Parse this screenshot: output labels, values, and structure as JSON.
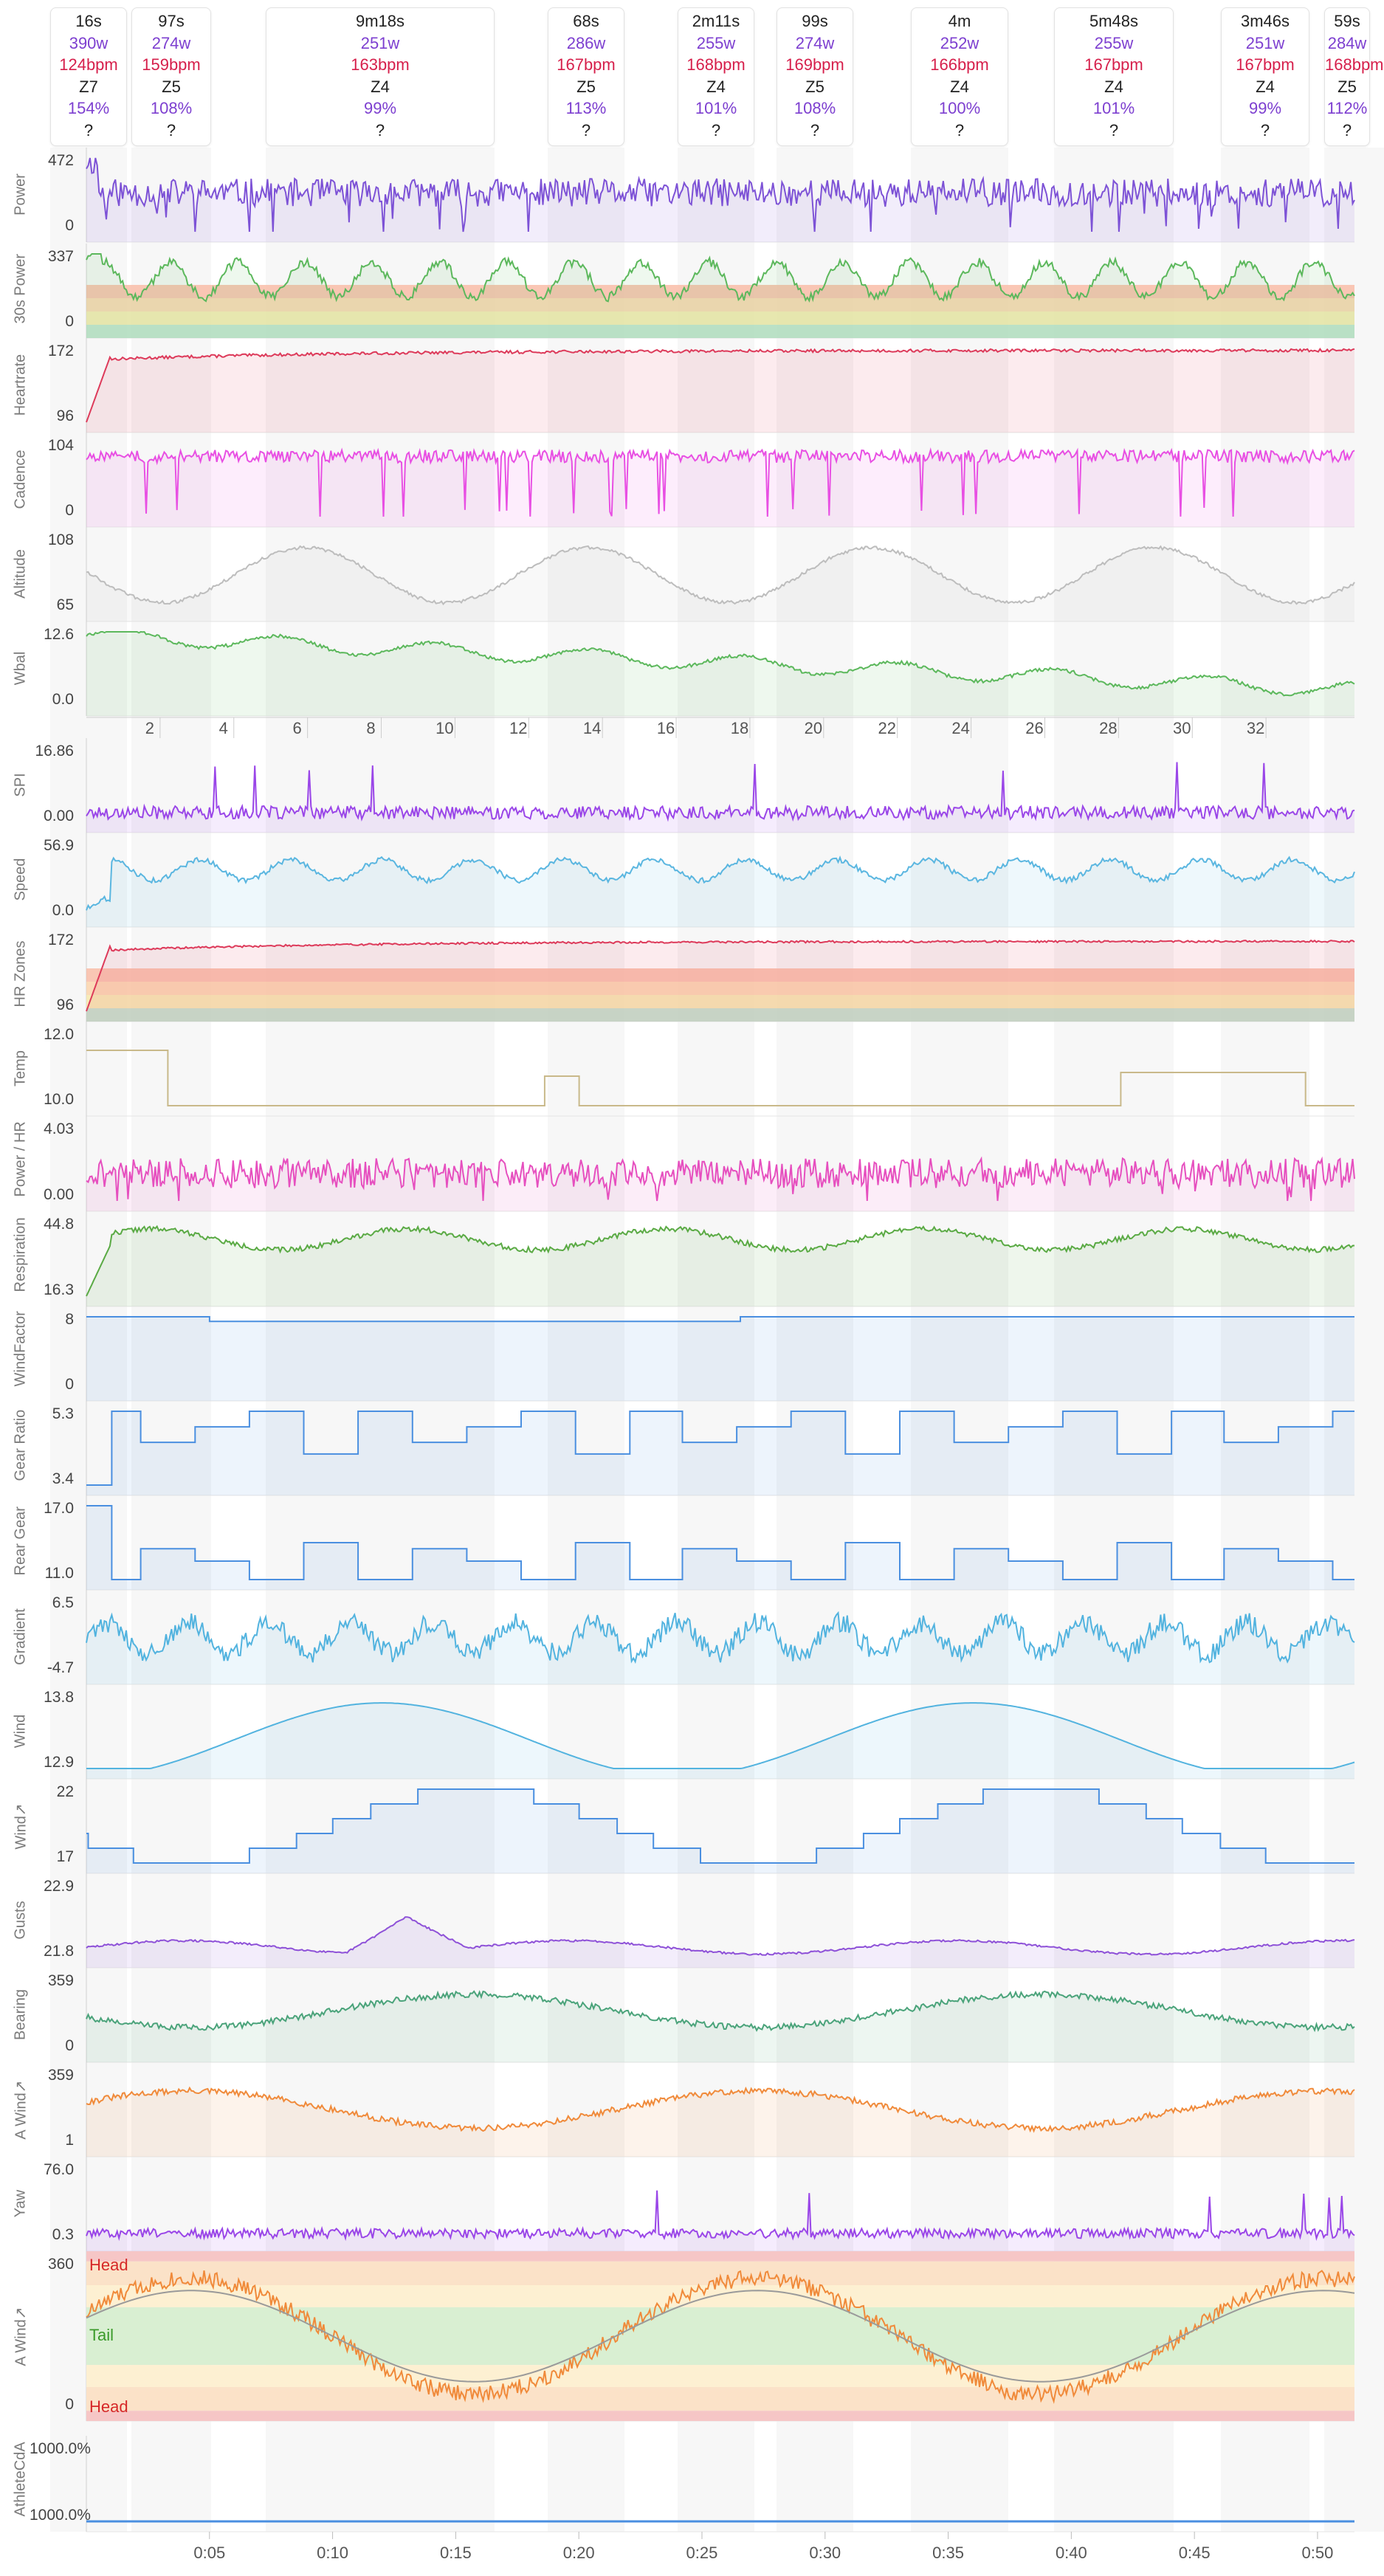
{
  "colors": {
    "power": "#7d52d6",
    "heartrate": "#dd3a5a",
    "cadence": "#e84fe3",
    "altitude": "#bdbdbd",
    "wbal": "#5cb85c",
    "spi": "#9a46e8",
    "speed": "#5ab6e0",
    "temp": "#c9b98a",
    "powerhr": "#e64fbf",
    "respiration": "#5aaa44",
    "blue": "#4a8fe0",
    "gradient": "#52b3df",
    "gusts": "#8e51d8",
    "bearing": "#4aa37a",
    "awind": "#f08a3a",
    "yaw": "#9a46e8",
    "head": "#d62828",
    "tail": "#3a9a2a"
  },
  "intervals": [
    {
      "duration": "16s",
      "power": "390w",
      "heartrate": "124bpm",
      "zone": "Z7",
      "percent": "154%",
      "note": "?"
    },
    {
      "duration": "97s",
      "power": "274w",
      "heartrate": "159bpm",
      "zone": "Z5",
      "percent": "108%",
      "note": "?"
    },
    {
      "duration": "9m18s",
      "power": "251w",
      "heartrate": "163bpm",
      "zone": "Z4",
      "percent": "99%",
      "note": "?"
    },
    {
      "duration": "68s",
      "power": "286w",
      "heartrate": "167bpm",
      "zone": "Z5",
      "percent": "113%",
      "note": "?"
    },
    {
      "duration": "2m11s",
      "power": "255w",
      "heartrate": "168bpm",
      "zone": "Z4",
      "percent": "101%",
      "note": "?"
    },
    {
      "duration": "99s",
      "power": "274w",
      "heartrate": "169bpm",
      "zone": "Z5",
      "percent": "108%",
      "note": "?"
    },
    {
      "duration": "4m",
      "power": "252w",
      "heartrate": "166bpm",
      "zone": "Z4",
      "percent": "100%",
      "note": "?"
    },
    {
      "duration": "5m48s",
      "power": "255w",
      "heartrate": "167bpm",
      "zone": "Z4",
      "percent": "101%",
      "note": "?"
    },
    {
      "duration": "3m46s",
      "power": "251w",
      "heartrate": "167bpm",
      "zone": "Z4",
      "percent": "99%",
      "note": "?"
    },
    {
      "duration": "59s",
      "power": "284w",
      "heartrate": "168bpm",
      "zone": "Z5",
      "percent": "112%",
      "note": "?"
    }
  ],
  "chart_data": {
    "type": "line",
    "x_unit": "minutes",
    "x_range": [
      0,
      51.5
    ],
    "x_ticks": [
      "0:05",
      "0:10",
      "0:15",
      "0:20",
      "0:25",
      "0:30",
      "0:35",
      "0:40",
      "0:45",
      "0:50"
    ],
    "distance_ticks": [
      "2",
      "4",
      "6",
      "8",
      "10",
      "12",
      "14",
      "16",
      "18",
      "20",
      "22",
      "24",
      "26",
      "28",
      "30",
      "32"
    ],
    "panels": [
      {
        "label": "Power",
        "y_ticks": [
          "472",
          "0"
        ],
        "ylim": [
          0,
          472
        ]
      },
      {
        "label": "30s Power",
        "y_ticks": [
          "337",
          "0"
        ],
        "ylim": [
          0,
          337
        ]
      },
      {
        "label": "Heartrate",
        "y_ticks": [
          "172",
          "96"
        ],
        "ylim": [
          96,
          172
        ]
      },
      {
        "label": "Cadence",
        "y_ticks": [
          "104",
          "0"
        ],
        "ylim": [
          0,
          104
        ]
      },
      {
        "label": "Altitude",
        "y_ticks": [
          "108",
          "65"
        ],
        "ylim": [
          65,
          108
        ]
      },
      {
        "label": "Wbal",
        "y_ticks": [
          "12.6",
          "0.0"
        ],
        "ylim": [
          0,
          12.6
        ]
      },
      {
        "label": "SPI",
        "y_ticks": [
          "16.86",
          "0.00"
        ],
        "ylim": [
          0,
          16.86
        ]
      },
      {
        "label": "Speed",
        "y_ticks": [
          "56.9",
          "0.0"
        ],
        "ylim": [
          0,
          56.9
        ]
      },
      {
        "label": "HR Zones",
        "y_ticks": [
          "172",
          "96"
        ],
        "ylim": [
          96,
          172
        ]
      },
      {
        "label": "Temp",
        "y_ticks": [
          "12.0",
          "10.0"
        ],
        "ylim": [
          10,
          12
        ]
      },
      {
        "label": "Power / HR",
        "y_ticks": [
          "4.03",
          "0.00"
        ],
        "ylim": [
          0,
          4.03
        ]
      },
      {
        "label": "Respiration",
        "y_ticks": [
          "44.8",
          "16.3"
        ],
        "ylim": [
          16.3,
          44.8
        ]
      },
      {
        "label": "WindFactor",
        "y_ticks": [
          "8",
          "0"
        ],
        "ylim": [
          0,
          8
        ]
      },
      {
        "label": "Gear Ratio",
        "y_ticks": [
          "5.3",
          "3.4"
        ],
        "ylim": [
          3.4,
          5.3
        ]
      },
      {
        "label": "Rear Gear",
        "y_ticks": [
          "17.0",
          "11.0"
        ],
        "ylim": [
          11,
          17
        ]
      },
      {
        "label": "Gradient",
        "y_ticks": [
          "6.5",
          "-4.7"
        ],
        "ylim": [
          -4.7,
          6.5
        ]
      },
      {
        "label": "Wind",
        "y_ticks": [
          "13.8",
          "12.9"
        ],
        "ylim": [
          12.9,
          13.8
        ]
      },
      {
        "label": "Wind↗",
        "y_ticks": [
          "22",
          "17"
        ],
        "ylim": [
          17,
          22
        ]
      },
      {
        "label": "Gusts",
        "y_ticks": [
          "22.9",
          "21.8"
        ],
        "ylim": [
          21.8,
          22.9
        ]
      },
      {
        "label": "Bearing",
        "y_ticks": [
          "359",
          "0"
        ],
        "ylim": [
          0,
          359
        ]
      },
      {
        "label": "A Wind↗",
        "y_ticks": [
          "359",
          "1"
        ],
        "ylim": [
          1,
          359
        ]
      },
      {
        "label": "Yaw",
        "y_ticks": [
          "76.0",
          "0.3"
        ],
        "ylim": [
          0.3,
          76
        ]
      },
      {
        "label": "A Wind↗",
        "y_ticks": [
          "360",
          "0"
        ],
        "ylim": [
          0,
          360
        ],
        "zone_labels": [
          "Head",
          "Tail",
          "Head"
        ]
      },
      {
        "label": "AthleteCdA",
        "y_ticks": [
          "1000.0%",
          "1000.0%"
        ],
        "ylim": [
          0,
          1
        ]
      }
    ],
    "grid": true,
    "legend": "none"
  }
}
